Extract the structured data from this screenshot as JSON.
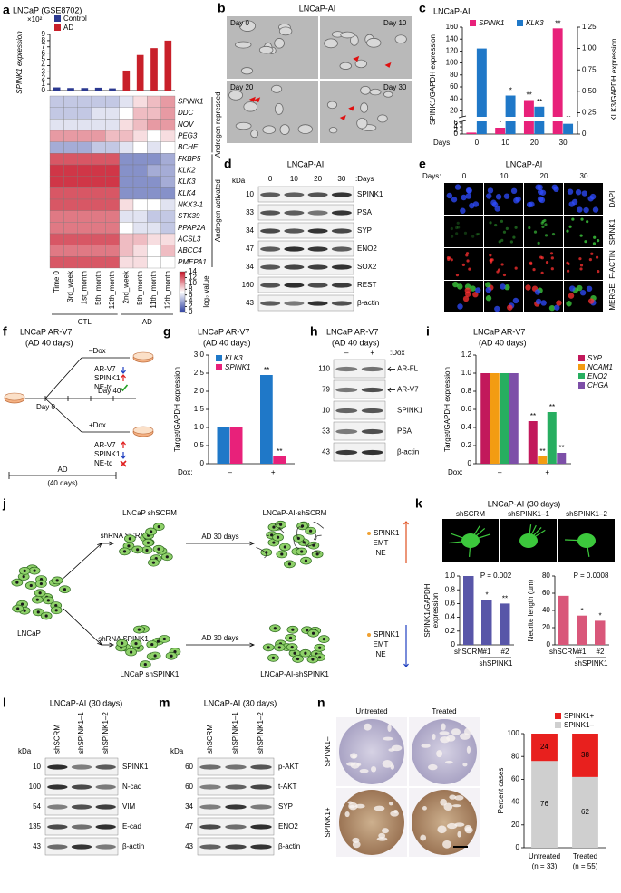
{
  "a": {
    "letter": "a",
    "title": "LNCaP (GSE8702)",
    "chart_data": {
      "type": "bar",
      "y_label": "SPINK1 expression",
      "y_exponent": "×10²",
      "ylim": [
        0,
        9
      ],
      "yticks": [
        0,
        1,
        2,
        3,
        4,
        5,
        6,
        7,
        8,
        9
      ],
      "series": [
        {
          "name": "Control",
          "color": "#2b3990",
          "values": [
            0.5,
            0.4,
            0.4,
            0.45,
            0.35,
            null,
            null,
            null,
            null
          ]
        },
        {
          "name": "AD",
          "color": "#c8202a",
          "values": [
            null,
            null,
            null,
            null,
            null,
            3.2,
            5.7,
            6.8,
            8.0
          ]
        }
      ]
    },
    "heatmap": {
      "type": "heatmap",
      "rows": [
        "SPINK1",
        "DDC",
        "NOV",
        "PEG3",
        "BCHE",
        "FKBP5",
        "KLK2",
        "KLK3",
        "KLK4",
        "NKX3-1",
        "STK39",
        "PPAP2A",
        "ACSL3",
        "ABCC4",
        "PMEPA1"
      ],
      "row_label_colors": [
        "#e0202a",
        "#000",
        "#000",
        "#000",
        "#000",
        "#000",
        "#000",
        "#000",
        "#000",
        "#000",
        "#000",
        "#000",
        "#000",
        "#000",
        "#000"
      ],
      "row_groups": [
        "Androgen repressed",
        "Androgen repressed",
        "Androgen repressed",
        "Androgen repressed",
        "Androgen repressed",
        "Androgen activated",
        "Androgen activated",
        "Androgen activated",
        "Androgen activated",
        "Androgen activated",
        "Androgen activated",
        "Androgen activated",
        "Androgen activated",
        "Androgen activated",
        "Androgen activated"
      ],
      "columns": [
        "Time 0",
        "3rd_week",
        "1st_month",
        "5th_month",
        "12th_month",
        "2nd_week",
        "5th_month",
        "11th_month",
        "12th_month"
      ],
      "column_groups": [
        "CTL",
        "CTL",
        "CTL",
        "CTL",
        "CTL",
        "AD",
        "AD",
        "AD",
        "AD"
      ],
      "values": [
        [
          5,
          5,
          5,
          5,
          5,
          6,
          8,
          9,
          10
        ],
        [
          5,
          5,
          5,
          6,
          6,
          7,
          9,
          9,
          10
        ],
        [
          6,
          6,
          6,
          6,
          6,
          8,
          9,
          10,
          10
        ],
        [
          10,
          10,
          10,
          10,
          9,
          9,
          8,
          7,
          8
        ],
        [
          4,
          4,
          4,
          5,
          5,
          6,
          7,
          6,
          7
        ],
        [
          12,
          12,
          12,
          12,
          12,
          3,
          3,
          3,
          4
        ],
        [
          13,
          13,
          13,
          13,
          13,
          3,
          3,
          4,
          4
        ],
        [
          13,
          13,
          13,
          13,
          13,
          3,
          3,
          3,
          4
        ],
        [
          12,
          12,
          12,
          12,
          12,
          3,
          3,
          3,
          3
        ],
        [
          12,
          12,
          12,
          12,
          12,
          8,
          7,
          7,
          6
        ],
        [
          11,
          11,
          11,
          11,
          11,
          6,
          6,
          5,
          5
        ],
        [
          11,
          11,
          11,
          11,
          11,
          7,
          6,
          6,
          5
        ],
        [
          12,
          12,
          12,
          12,
          12,
          9,
          9,
          8,
          8
        ],
        [
          11,
          11,
          11,
          11,
          11,
          9,
          8,
          7,
          9
        ],
        [
          12,
          12,
          12,
          12,
          12,
          8,
          8,
          7,
          7
        ]
      ],
      "clim": [
        0,
        14
      ],
      "colorbar_ticks": [
        0,
        2,
        4,
        6,
        8,
        10,
        12,
        14
      ],
      "colorbar_label": "log₂ value"
    }
  },
  "b": {
    "letter": "b",
    "title": "LNCaP-AI",
    "images": [
      "Day 0",
      "Day 10",
      "Day 20",
      "Day 30"
    ]
  },
  "c": {
    "letter": "c",
    "title": "LNCaP-AI",
    "chart_data": {
      "type": "bar",
      "x_label": "Days:",
      "categories": [
        0,
        10,
        20,
        30
      ],
      "y_label": "SPINK1/GAPDH expression",
      "y2_label": "KLK3/GAPDH expression",
      "ylim_lower": [
        0,
        7
      ],
      "ylim_upper": [
        10,
        160
      ],
      "yticks": [
        0,
        2,
        4,
        6,
        20,
        40,
        60,
        80,
        100,
        120,
        140,
        160
      ],
      "y2lim": [
        0,
        1.25
      ],
      "y2ticks": [
        0,
        {
          "value": 0.25,
          "label": "0.25"
        },
        {
          "value": 0.5,
          "label": "0.50"
        },
        {
          "value": 0.75,
          "label": "0.75"
        },
        {
          "value": 1,
          "label": "1.00"
        },
        1.25
      ],
      "series": [
        {
          "name": "SPINK1",
          "color": "#e8217a",
          "values": [
            0.8,
            3.5,
            38,
            158
          ],
          "sig": [
            null,
            "*",
            "**",
            "**"
          ]
        },
        {
          "name": "KLK3",
          "color": "#1f78c8",
          "axis": "y2",
          "values": [
            1.0,
            0.45,
            0.32,
            0.12
          ],
          "sig": [
            null,
            "*",
            "**",
            "**"
          ]
        }
      ]
    }
  },
  "d": {
    "letter": "d",
    "title": "LNCaP-AI",
    "kda_label": "kDa",
    "lanes": [
      0,
      10,
      20,
      30
    ],
    "lane_suffix": ":Days",
    "rows": [
      {
        "kda": 10,
        "name": "SPINK1"
      },
      {
        "kda": 33,
        "name": "PSA"
      },
      {
        "kda": 34,
        "name": "SYP"
      },
      {
        "kda": 47,
        "name": "ENO2"
      },
      {
        "kda": 34,
        "name": "SOX2"
      },
      {
        "kda": 160,
        "name": "REST"
      },
      {
        "kda": 43,
        "name": "β-actin"
      }
    ]
  },
  "e": {
    "letter": "e",
    "title": "LNCaP-AI",
    "days_label": "Days:",
    "columns": [
      0,
      10,
      20,
      30
    ],
    "rows": [
      "DAPI",
      "SPINK1",
      "F-ACTIN",
      "MERGE"
    ],
    "row_colors": [
      "#2a3fd8",
      "#2aa02a",
      "#e02020",
      "#000000"
    ]
  },
  "f": {
    "letter": "f",
    "title": "LNCaP AR-V7",
    "subtitle": "(AD 40 days)",
    "minus": "–Dox",
    "plus": "+Dox",
    "day0": "Day 0",
    "day40": "Day 40",
    "ad": "AD",
    "ad_days": "(40 days)",
    "minus_outcome": [
      "AR-V7",
      "SPINK1",
      "NE-td"
    ],
    "plus_outcome": [
      "AR-V7",
      "SPINK1",
      "NE-td"
    ]
  },
  "g": {
    "letter": "g",
    "title": "LNCaP AR-V7",
    "subtitle": "(AD 40 days)",
    "chart_data": {
      "type": "bar",
      "x_label": "Dox:",
      "categories": [
        "–",
        "+"
      ],
      "y_label": "Target/GAPDH expression",
      "ylim": [
        0,
        3
      ],
      "yticks": [
        0,
        0.5,
        {
          "value": 1,
          "label": "1.0"
        },
        1.5,
        {
          "value": 2,
          "label": "2.0"
        },
        2.5,
        {
          "value": 3,
          "label": "3.0"
        }
      ],
      "series": [
        {
          "name": "KLK3",
          "color": "#1f78c8",
          "values": [
            1.0,
            2.45
          ],
          "sig": [
            null,
            "**"
          ]
        },
        {
          "name": "SPINK1",
          "color": "#e8217a",
          "values": [
            1.0,
            0.2
          ],
          "sig": [
            null,
            "**"
          ]
        }
      ]
    }
  },
  "h": {
    "letter": "h",
    "title": "LNCaP AR-V7",
    "subtitle": "(AD 40 days)",
    "lanes": [
      "–",
      "+"
    ],
    "lane_suffix": ":Dox",
    "rows": [
      {
        "kda": 110,
        "name": "AR-FL"
      },
      {
        "kda": 79,
        "name": "AR-V7"
      },
      {
        "kda": 10,
        "name": "SPINK1"
      },
      {
        "kda": 33,
        "name": "PSA"
      },
      {
        "kda": 43,
        "name": "β-actin"
      }
    ]
  },
  "i": {
    "letter": "i",
    "title": "LNCaP AR-V7",
    "subtitle": "(AD 40 days)",
    "chart_data": {
      "type": "bar",
      "x_label": "Dox:",
      "categories": [
        "–",
        "+"
      ],
      "y_label": "Target/GAPDH expression",
      "ylim": [
        0,
        1.2
      ],
      "yticks": [
        0,
        0.2,
        0.4,
        0.6,
        0.8,
        {
          "value": 1,
          "label": "1.0"
        },
        1.2
      ],
      "series": [
        {
          "name": "SYP",
          "color": "#c2185b",
          "values": [
            1.0,
            0.47
          ],
          "sig": [
            null,
            "**"
          ]
        },
        {
          "name": "NCAM1",
          "color": "#f39c12",
          "values": [
            1.0,
            0.08
          ],
          "sig": [
            null,
            "**"
          ]
        },
        {
          "name": "ENO2",
          "color": "#27ae60",
          "values": [
            1.0,
            0.57
          ],
          "sig": [
            null,
            "**"
          ]
        },
        {
          "name": "CHGA",
          "color": "#7d4fa8",
          "values": [
            1.0,
            0.12
          ],
          "sig": [
            null,
            "**"
          ]
        }
      ]
    }
  },
  "j": {
    "letter": "j",
    "origin": "LNCaP",
    "top": {
      "treatment": "shRNA SCRM",
      "cells": "LNCaP shSCRM",
      "step": "AD 30 days",
      "result": "LNCaP-AI-shSCRM",
      "markers": [
        "SPINK1",
        "EMT",
        "NE"
      ]
    },
    "bottom": {
      "treatment": "shRNA SPINK1",
      "cells": "LNCaP shSPINK1",
      "step": "AD 30 days",
      "result": "LNCaP-AI-shSPINK1",
      "markers": [
        "SPINK1",
        "EMT",
        "NE"
      ]
    }
  },
  "k": {
    "letter": "k",
    "title": "LNCaP-AI (30 days)",
    "images": [
      "shSCRM",
      "shSPINK1–1",
      "shSPINK1–2"
    ],
    "charts": [
      {
        "type": "bar",
        "y_label": [
          "SPINK1/GAPDH",
          "expression"
        ],
        "p_value": "P = 0.002",
        "categories": [
          "shSCRM",
          "#1",
          "#2"
        ],
        "group_label": "shSPINK1",
        "ylim": [
          0,
          1
        ],
        "yticks": [
          0,
          0.2,
          0.4,
          0.6,
          0.8,
          {
            "value": 1,
            "label": "1.0"
          }
        ],
        "series": [
          {
            "color": "#5856a8",
            "values": [
              1.0,
              0.65,
              0.6
            ],
            "sig": [
              null,
              "*",
              "**"
            ]
          }
        ]
      },
      {
        "type": "bar",
        "y_label": [
          "Neurite length (µm)"
        ],
        "p_value": "P = 0.0008",
        "categories": [
          "shSCRM",
          "#1",
          "#2"
        ],
        "group_label": "shSPINK1",
        "ylim": [
          0,
          80
        ],
        "yticks": [
          0,
          20,
          40,
          60,
          80
        ],
        "series": [
          {
            "color": "#d9577a",
            "values": [
              57,
              34,
              28
            ],
            "sig": [
              null,
              "*",
              "*"
            ]
          }
        ]
      }
    ]
  },
  "l": {
    "letter": "l",
    "title": "LNCaP-AI (30 days)",
    "kda_label": "kDa",
    "lanes": [
      "shSCRM",
      "shSPINK1–1",
      "shSPINK1–2"
    ],
    "rows": [
      {
        "kda": 10,
        "name": "SPINK1"
      },
      {
        "kda": 100,
        "name": "N-cad"
      },
      {
        "kda": 54,
        "name": "VIM"
      },
      {
        "kda": 135,
        "name": "E-cad"
      },
      {
        "kda": 43,
        "name": "β-actin"
      }
    ]
  },
  "m": {
    "letter": "m",
    "title": "LNCaP-AI (30 days)",
    "kda_label": "kDa",
    "lanes": [
      "shSCRM",
      "shSPINK1–1",
      "shSPINK1–2"
    ],
    "rows": [
      {
        "kda": 60,
        "name": "p-AKT"
      },
      {
        "kda": 60,
        "name": "t-AKT"
      },
      {
        "kda": 34,
        "name": "SYP"
      },
      {
        "kda": 47,
        "name": "ENO2"
      },
      {
        "kda": 43,
        "name": "β-actin"
      }
    ]
  },
  "n": {
    "letter": "n",
    "images": {
      "columns": [
        "Untreated",
        "Treated"
      ],
      "rows": [
        "SPINK1–",
        "SPINK1+"
      ]
    },
    "chart_data": {
      "type": "stacked_bar",
      "y_label": "Percent cases",
      "categories": [
        "Untreated",
        "Treated"
      ],
      "category_notes": [
        "(n = 33)",
        "(n = 55)"
      ],
      "ylim": [
        0,
        100
      ],
      "yticks": [
        0,
        20,
        40,
        60,
        80,
        100
      ],
      "series": [
        {
          "name": "SPINK1–",
          "color": "#cfcfcf",
          "values": [
            76,
            62
          ]
        },
        {
          "name": "SPINK1+",
          "color": "#e8201e",
          "values": [
            24,
            38
          ]
        }
      ]
    }
  }
}
